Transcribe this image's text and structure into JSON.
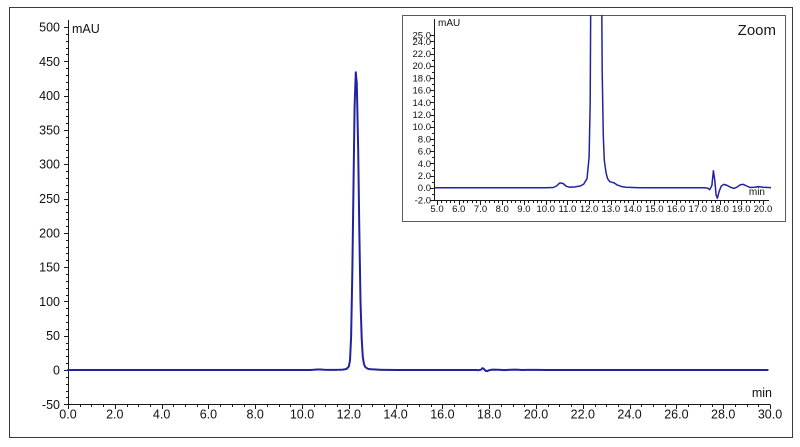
{
  "window": {
    "background": "#ffffff",
    "outer_border_color": "#3a3a3a",
    "inset_border_color": "#5a5a5a",
    "axis_color": "#1a1a1a",
    "text_color": "#111111"
  },
  "chart_data": {
    "type": "line",
    "trace_color": "#22229f",
    "signal_points": [
      [
        0,
        0
      ],
      [
        0.5,
        0
      ],
      [
        1,
        0
      ],
      [
        1.5,
        0
      ],
      [
        2,
        0
      ],
      [
        2.5,
        0
      ],
      [
        3,
        0
      ],
      [
        3.5,
        0
      ],
      [
        4,
        0
      ],
      [
        4.5,
        0
      ],
      [
        5,
        0
      ],
      [
        5.5,
        0
      ],
      [
        6,
        0
      ],
      [
        6.5,
        0
      ],
      [
        7,
        0
      ],
      [
        7.5,
        0
      ],
      [
        8,
        0
      ],
      [
        8.5,
        0
      ],
      [
        9,
        0
      ],
      [
        9.5,
        0
      ],
      [
        10,
        0
      ],
      [
        10.35,
        0.05
      ],
      [
        10.5,
        0.3
      ],
      [
        10.65,
        0.8
      ],
      [
        10.8,
        0.7
      ],
      [
        10.95,
        0.25
      ],
      [
        11.1,
        0.1
      ],
      [
        11.35,
        0.15
      ],
      [
        11.6,
        0.3
      ],
      [
        11.75,
        0.6
      ],
      [
        11.9,
        1.5
      ],
      [
        12.0,
        5
      ],
      [
        12.05,
        14
      ],
      [
        12.1,
        48
      ],
      [
        12.15,
        140
      ],
      [
        12.2,
        270
      ],
      [
        12.25,
        385
      ],
      [
        12.3,
        434
      ],
      [
        12.34,
        418
      ],
      [
        12.4,
        320
      ],
      [
        12.45,
        205
      ],
      [
        12.5,
        100
      ],
      [
        12.55,
        46
      ],
      [
        12.6,
        19
      ],
      [
        12.65,
        8.5
      ],
      [
        12.7,
        4.5
      ],
      [
        12.78,
        2.4
      ],
      [
        12.85,
        1.5
      ],
      [
        12.95,
        1.0
      ],
      [
        13.05,
        0.9
      ],
      [
        13.15,
        0.8
      ],
      [
        13.3,
        0.45
      ],
      [
        13.5,
        0.2
      ],
      [
        13.7,
        0.1
      ],
      [
        14,
        0.05
      ],
      [
        14.5,
        0
      ],
      [
        15,
        0
      ],
      [
        15.5,
        0
      ],
      [
        16,
        0
      ],
      [
        16.5,
        0
      ],
      [
        17,
        0
      ],
      [
        17.3,
        0
      ],
      [
        17.45,
        -0.05
      ],
      [
        17.55,
        -0.3
      ],
      [
        17.65,
        0.4
      ],
      [
        17.72,
        2.8
      ],
      [
        17.78,
        1.2
      ],
      [
        17.84,
        -1.2
      ],
      [
        17.9,
        -1.7
      ],
      [
        17.98,
        -0.6
      ],
      [
        18.08,
        0.3
      ],
      [
        18.2,
        0.55
      ],
      [
        18.35,
        0.4
      ],
      [
        18.5,
        0.1
      ],
      [
        18.65,
        -0.1
      ],
      [
        18.8,
        0.1
      ],
      [
        18.95,
        0.5
      ],
      [
        19.1,
        0.55
      ],
      [
        19.25,
        0.3
      ],
      [
        19.4,
        0.05
      ],
      [
        19.6,
        0.1
      ],
      [
        19.8,
        0.2
      ],
      [
        20,
        0.1
      ],
      [
        20.5,
        0
      ],
      [
        21,
        0
      ],
      [
        21.5,
        0
      ],
      [
        22,
        0
      ],
      [
        22.5,
        0
      ],
      [
        23,
        0
      ],
      [
        23.5,
        0
      ],
      [
        24,
        0
      ],
      [
        24.5,
        0
      ],
      [
        25,
        0
      ],
      [
        25.5,
        0
      ],
      [
        26,
        0
      ],
      [
        26.5,
        0
      ],
      [
        27,
        0
      ],
      [
        27.5,
        0
      ],
      [
        28,
        0
      ],
      [
        28.5,
        0
      ],
      [
        29,
        0
      ],
      [
        29.5,
        0
      ],
      [
        29.9,
        0
      ]
    ],
    "charts": [
      {
        "id": "main",
        "type": "line",
        "title": "",
        "ylabel": "mAU",
        "xlabel": "min",
        "xlim": [
          0.0,
          30.0
        ],
        "ylim": [
          -50,
          500
        ],
        "xtick_values": [
          0,
          2,
          4,
          6,
          8,
          10,
          12,
          14,
          16,
          18,
          20,
          22,
          24,
          26,
          28,
          30
        ],
        "xtick_labels": [
          "0.0",
          "2.0",
          "4.0",
          "6.0",
          "8.0",
          "10.0",
          "12.0",
          "14.0",
          "16.0",
          "18.0",
          "20.0",
          "22.0",
          "24.0",
          "26.0",
          "28.0",
          "30.0"
        ],
        "ytick_values": [
          -50,
          0,
          50,
          100,
          150,
          200,
          250,
          300,
          350,
          400,
          450,
          500
        ],
        "ytick_labels": [
          "-50",
          "0",
          "50",
          "100",
          "150",
          "200",
          "250",
          "300",
          "350",
          "400",
          "450",
          "500"
        ],
        "x_minor_step": 0.5,
        "y_minor_step": 10,
        "grid": false,
        "line_color": "#22229f",
        "peak_apex": {
          "x_min": 12.3,
          "y_mau": 434
        }
      },
      {
        "id": "zoom",
        "type": "line",
        "title": "Zoom",
        "corner_label": "Zoom",
        "ylabel": "mAU",
        "xlabel": "min",
        "xlim": [
          5.0,
          20.0
        ],
        "ylim": [
          -2.0,
          25.0
        ],
        "xtick_values": [
          5,
          6,
          7,
          8,
          9,
          10,
          11,
          12,
          13,
          14,
          15,
          16,
          17,
          18,
          19,
          20
        ],
        "xtick_labels": [
          "5.0",
          "6.0",
          "7.0",
          "8.0",
          "9.0",
          "10.0",
          "11.0",
          "12.0",
          "13.0",
          "14.0",
          "15.0",
          "16.0",
          "17.0",
          "18.0",
          "19.0",
          "20.0"
        ],
        "ytick_values": [
          -2,
          0,
          2,
          4,
          6,
          8,
          10,
          12,
          14,
          16,
          18,
          20,
          22,
          24,
          25
        ],
        "ytick_labels": [
          "-2.0",
          "0.0",
          "2.0",
          "4.0",
          "6.0",
          "8.0",
          "10.0",
          "12.0",
          "14.0",
          "16.0",
          "18.0",
          "20.0",
          "22.0",
          "24.0",
          "25.0"
        ],
        "x_minor_step": 0.2,
        "y_minor_step": 1,
        "grid": false,
        "line_color": "#22229f"
      }
    ]
  }
}
